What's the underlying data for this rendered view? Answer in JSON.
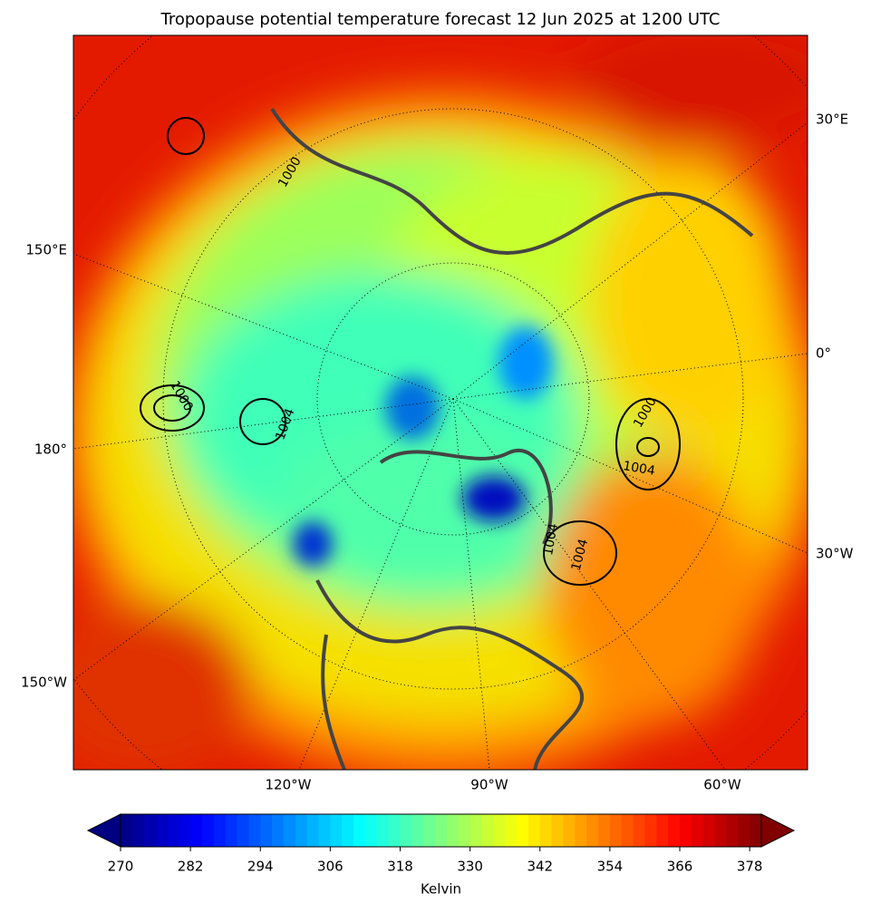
{
  "chart_data": {
    "type": "map",
    "title": "Tropopause potential temperature forecast 12 Jun 2025 at 1200 UTC",
    "longitude_labels": {
      "left": [
        "150°E",
        "180°",
        "150°W"
      ],
      "right": [
        "30°E",
        "0°",
        "30°W"
      ],
      "bottom": [
        "120°W",
        "90°W",
        "60°W"
      ]
    },
    "contour_labels": [
      "1000",
      "1004",
      "1000",
      "1004",
      "1004",
      "1000",
      "1004"
    ],
    "colorbar": {
      "label": "Kelvin",
      "colormap": "jet",
      "clim": [
        270,
        380
      ],
      "step": 2,
      "extend": "both",
      "ticks": [
        270,
        282,
        294,
        306,
        318,
        330,
        342,
        354,
        366,
        378
      ]
    }
  }
}
